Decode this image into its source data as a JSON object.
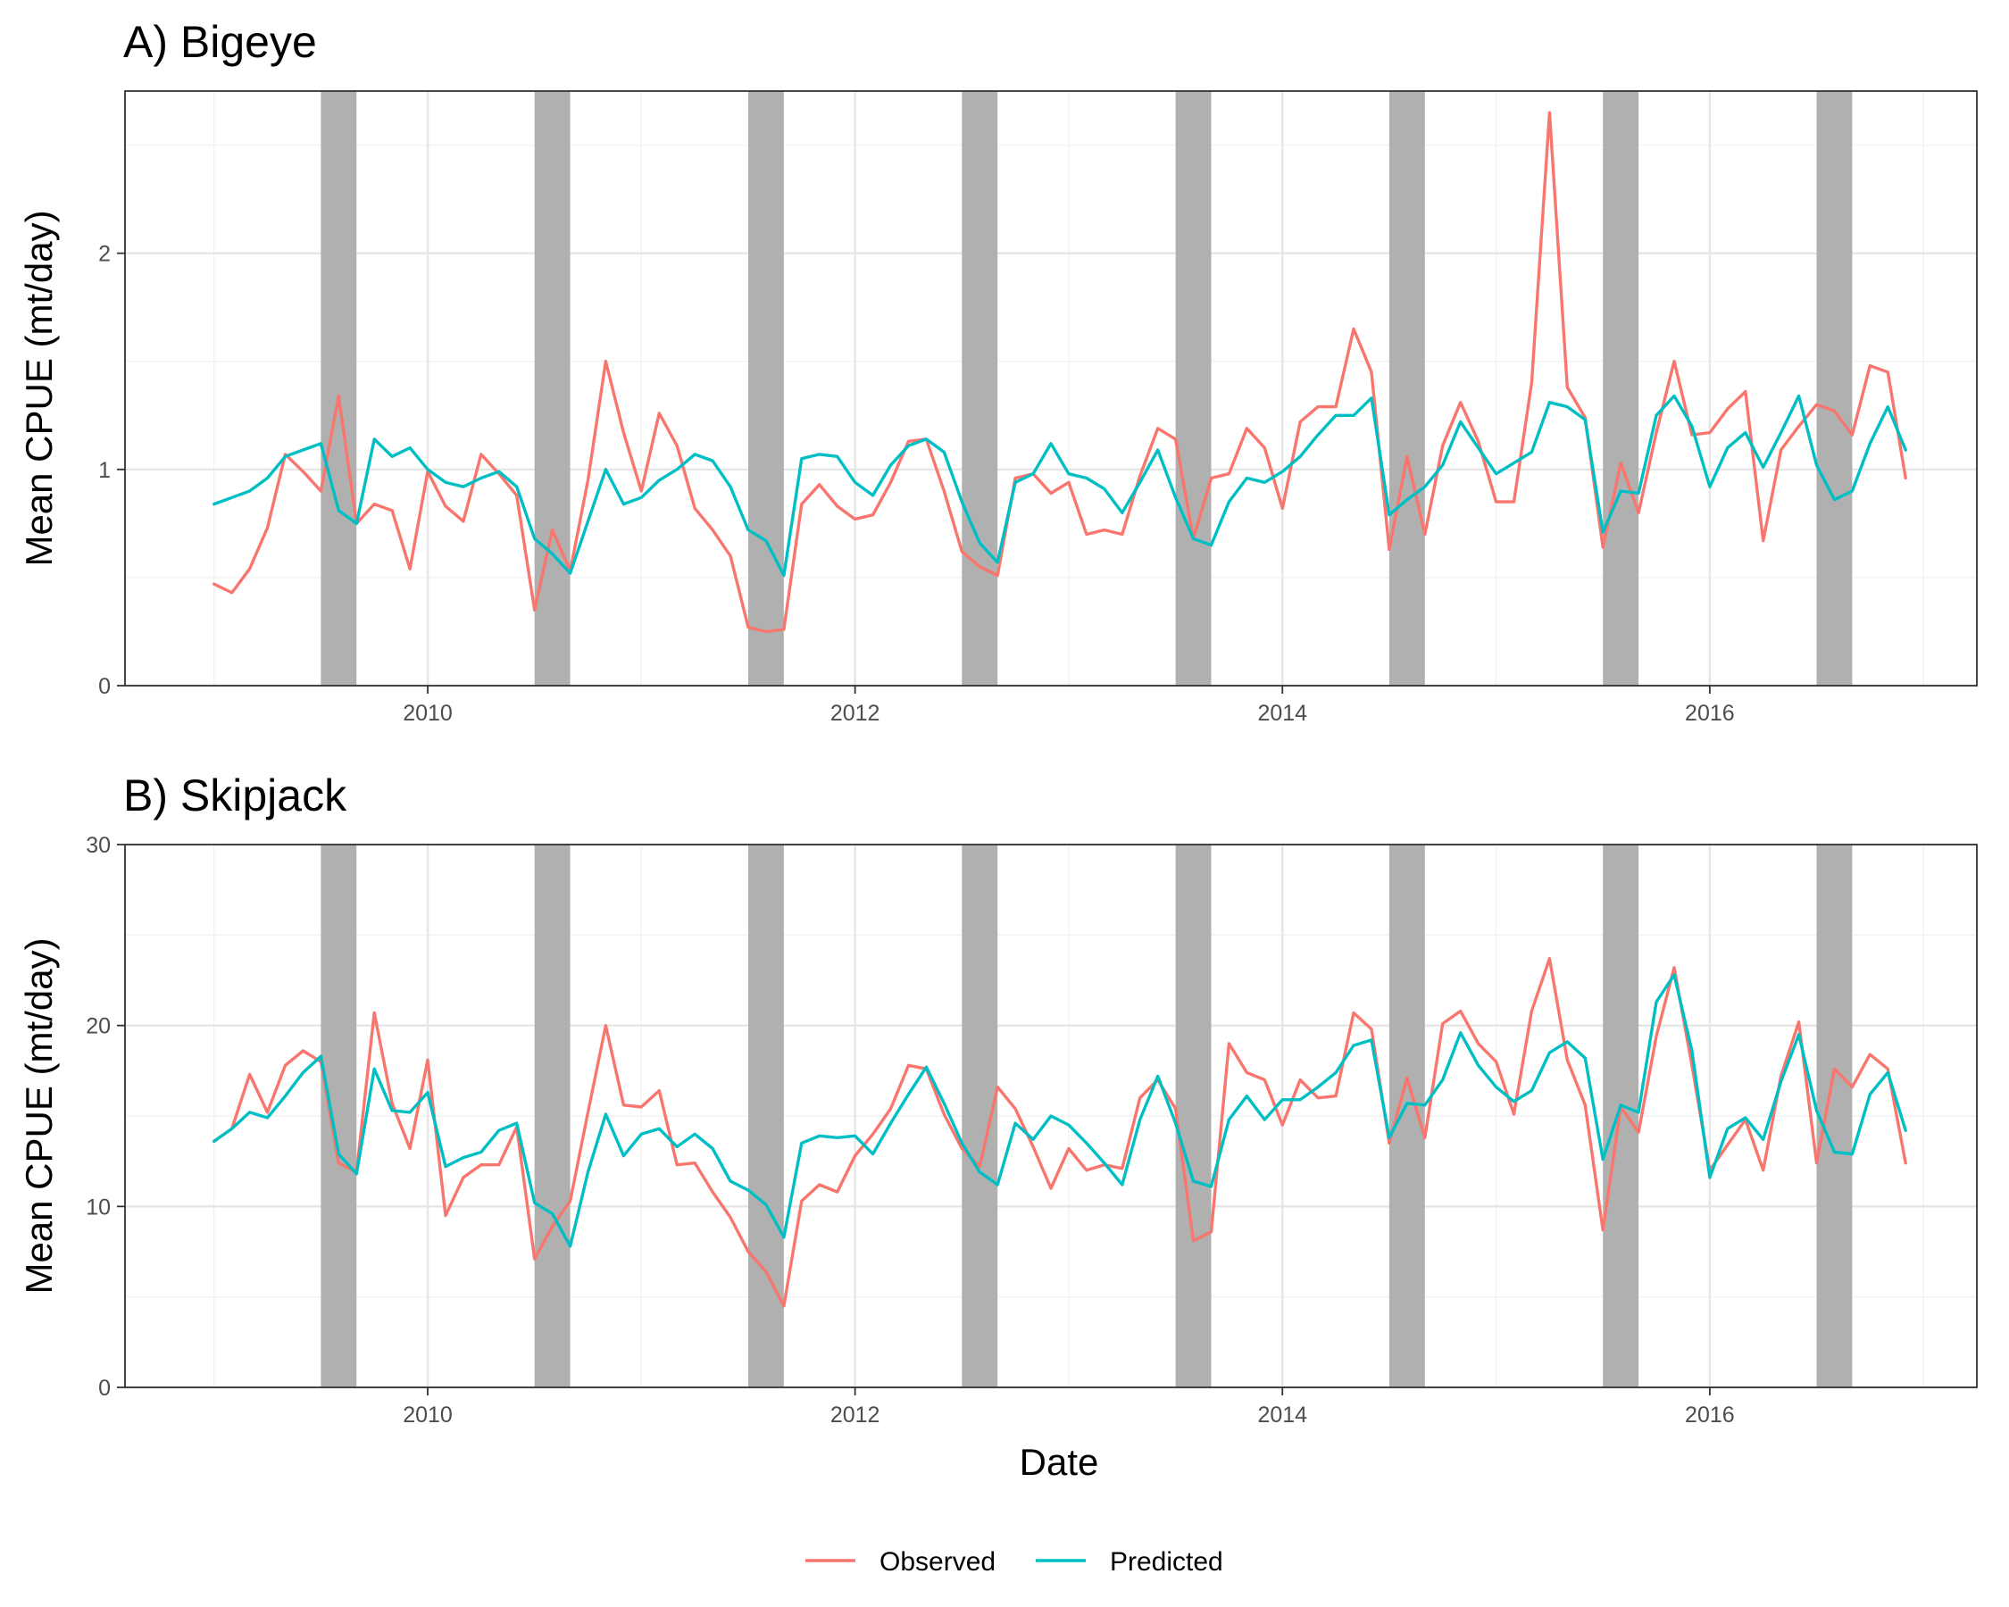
{
  "chart_data": [
    {
      "type": "line",
      "title": "A) Bigeye",
      "xlabel": "",
      "ylabel": "Mean CPUE (mt/day)",
      "x_start": "2009-01",
      "x_step": "month",
      "xlim": [
        "2008-08",
        "2017-04"
      ],
      "ylim": [
        0,
        2.75
      ],
      "x_ticks": [
        2010,
        2012,
        2014,
        2016
      ],
      "x_tick_labels": [
        "2010",
        "2012",
        "2014",
        "2016"
      ],
      "y_ticks": [
        0,
        1,
        2
      ],
      "y_tick_labels": [
        "0",
        "1",
        "2"
      ],
      "grid": true,
      "shaded_periods": [
        [
          "2009-07",
          "2009-09"
        ],
        [
          "2010-07",
          "2010-09"
        ],
        [
          "2011-07",
          "2011-09"
        ],
        [
          "2012-07",
          "2012-09"
        ],
        [
          "2013-07",
          "2013-09"
        ],
        [
          "2014-07",
          "2014-09"
        ],
        [
          "2015-07",
          "2015-09"
        ],
        [
          "2016-07",
          "2016-09"
        ]
      ],
      "series": [
        {
          "name": "Observed",
          "color": "#F8766D",
          "values": [
            0.47,
            0.43,
            0.54,
            0.73,
            1.07,
            0.99,
            0.9,
            1.34,
            0.75,
            0.84,
            0.81,
            0.54,
            0.99,
            0.83,
            0.76,
            1.07,
            0.98,
            0.88,
            0.35,
            0.72,
            0.53,
            0.95,
            1.5,
            1.17,
            0.9,
            1.26,
            1.11,
            0.82,
            0.72,
            0.6,
            0.27,
            0.25,
            0.26,
            0.84,
            0.93,
            0.83,
            0.77,
            0.79,
            0.94,
            1.13,
            1.14,
            0.9,
            0.62,
            0.55,
            0.51,
            0.96,
            0.98,
            0.89,
            0.94,
            0.7,
            0.72,
            0.7,
            0.97,
            1.19,
            1.14,
            0.68,
            0.96,
            0.98,
            1.19,
            1.1,
            0.82,
            1.22,
            1.29,
            1.29,
            1.65,
            1.45,
            0.63,
            1.06,
            0.7,
            1.11,
            1.31,
            1.13,
            0.85,
            0.85,
            1.4,
            2.65,
            1.38,
            1.24,
            0.64,
            1.03,
            0.8,
            1.17,
            1.5,
            1.16,
            1.17,
            1.28,
            1.36,
            0.67,
            1.09,
            1.2,
            1.3,
            1.27,
            1.16,
            1.48,
            1.45,
            0.96
          ]
        },
        {
          "name": "Predicted",
          "color": "#00BFC4",
          "values": [
            0.84,
            0.87,
            0.9,
            0.96,
            1.06,
            1.09,
            1.12,
            0.81,
            0.75,
            1.14,
            1.06,
            1.1,
            1.0,
            0.94,
            0.92,
            0.96,
            0.99,
            0.92,
            0.68,
            0.61,
            0.52,
            0.76,
            1.0,
            0.84,
            0.87,
            0.95,
            1.0,
            1.07,
            1.04,
            0.92,
            0.72,
            0.67,
            0.51,
            1.05,
            1.07,
            1.06,
            0.94,
            0.88,
            1.02,
            1.11,
            1.14,
            1.08,
            0.85,
            0.66,
            0.57,
            0.94,
            0.98,
            1.12,
            0.98,
            0.96,
            0.91,
            0.8,
            0.94,
            1.09,
            0.87,
            0.68,
            0.65,
            0.85,
            0.96,
            0.94,
            0.99,
            1.06,
            1.16,
            1.25,
            1.25,
            1.33,
            0.79,
            0.86,
            0.92,
            1.02,
            1.22,
            1.1,
            0.98,
            1.03,
            1.08,
            1.31,
            1.29,
            1.23,
            0.71,
            0.9,
            0.89,
            1.25,
            1.34,
            1.2,
            0.92,
            1.1,
            1.17,
            1.01,
            1.17,
            1.34,
            1.02,
            0.86,
            0.9,
            1.12,
            1.29,
            1.09
          ]
        }
      ]
    },
    {
      "type": "line",
      "title": "B) Skipjack",
      "xlabel": "Date",
      "ylabel": "Mean CPUE (mt/day)",
      "x_start": "2009-01",
      "x_step": "month",
      "xlim": [
        "2008-08",
        "2017-04"
      ],
      "ylim": [
        0,
        30
      ],
      "x_ticks": [
        2010,
        2012,
        2014,
        2016
      ],
      "x_tick_labels": [
        "2010",
        "2012",
        "2014",
        "2016"
      ],
      "y_ticks": [
        0,
        10,
        20,
        30
      ],
      "y_tick_labels": [
        "0",
        "10",
        "20",
        "30"
      ],
      "grid": true,
      "shaded_periods": [
        [
          "2009-07",
          "2009-09"
        ],
        [
          "2010-07",
          "2010-09"
        ],
        [
          "2011-07",
          "2011-09"
        ],
        [
          "2012-07",
          "2012-09"
        ],
        [
          "2013-07",
          "2013-09"
        ],
        [
          "2014-07",
          "2014-09"
        ],
        [
          "2015-07",
          "2015-09"
        ],
        [
          "2016-07",
          "2016-09"
        ]
      ],
      "series": [
        {
          "name": "Observed",
          "color": "#F8766D",
          "values": [
            13.6,
            14.3,
            17.3,
            15.2,
            17.8,
            18.6,
            18.0,
            12.4,
            11.9,
            20.7,
            15.7,
            13.2,
            18.1,
            9.5,
            11.6,
            12.3,
            12.3,
            14.4,
            7.1,
            8.9,
            10.3,
            15.2,
            20.0,
            15.6,
            15.5,
            16.4,
            12.3,
            12.4,
            10.8,
            9.4,
            7.5,
            6.4,
            4.5,
            10.3,
            11.2,
            10.8,
            12.8,
            14.0,
            15.4,
            17.8,
            17.6,
            15.1,
            13.2,
            12.2,
            16.6,
            15.4,
            13.3,
            11.0,
            13.2,
            12.0,
            12.3,
            12.1,
            16.0,
            17.0,
            15.4,
            8.1,
            8.6,
            19.0,
            17.4,
            17.0,
            14.5,
            17.0,
            16.0,
            16.1,
            20.7,
            19.8,
            13.5,
            17.1,
            13.8,
            20.1,
            20.8,
            19.0,
            18.0,
            15.1,
            20.8,
            23.7,
            18.1,
            15.6,
            8.7,
            15.5,
            14.1,
            19.4,
            23.2,
            17.8,
            12.0,
            13.4,
            14.8,
            12.0,
            17.2,
            20.2,
            12.4,
            17.6,
            16.6,
            18.4,
            17.6,
            12.4
          ]
        },
        {
          "name": "Predicted",
          "color": "#00BFC4",
          "values": [
            13.6,
            14.3,
            15.2,
            14.9,
            16.1,
            17.4,
            18.3,
            12.9,
            11.8,
            17.6,
            15.3,
            15.2,
            16.3,
            12.2,
            12.7,
            13.0,
            14.2,
            14.6,
            10.2,
            9.6,
            7.8,
            11.9,
            15.1,
            12.8,
            14.0,
            14.3,
            13.3,
            14.0,
            13.2,
            11.4,
            10.9,
            10.1,
            8.3,
            13.5,
            13.9,
            13.8,
            13.9,
            12.9,
            14.6,
            16.2,
            17.7,
            15.7,
            13.5,
            11.9,
            11.2,
            14.6,
            13.7,
            15.0,
            14.5,
            13.5,
            12.4,
            11.2,
            14.8,
            17.2,
            14.6,
            11.4,
            11.1,
            14.8,
            16.1,
            14.8,
            15.9,
            15.9,
            16.6,
            17.4,
            18.9,
            19.2,
            13.8,
            15.7,
            15.6,
            17.0,
            19.6,
            17.8,
            16.6,
            15.8,
            16.4,
            18.5,
            19.1,
            18.2,
            12.6,
            15.6,
            15.2,
            21.3,
            22.8,
            18.6,
            11.6,
            14.3,
            14.9,
            13.7,
            16.9,
            19.5,
            15.3,
            13.0,
            12.9,
            16.2,
            17.4,
            14.2
          ]
        }
      ]
    }
  ],
  "legend": {
    "position": "bottom",
    "items": [
      {
        "label": "Observed",
        "color": "#F8766D"
      },
      {
        "label": "Predicted",
        "color": "#00BFC4"
      }
    ]
  }
}
